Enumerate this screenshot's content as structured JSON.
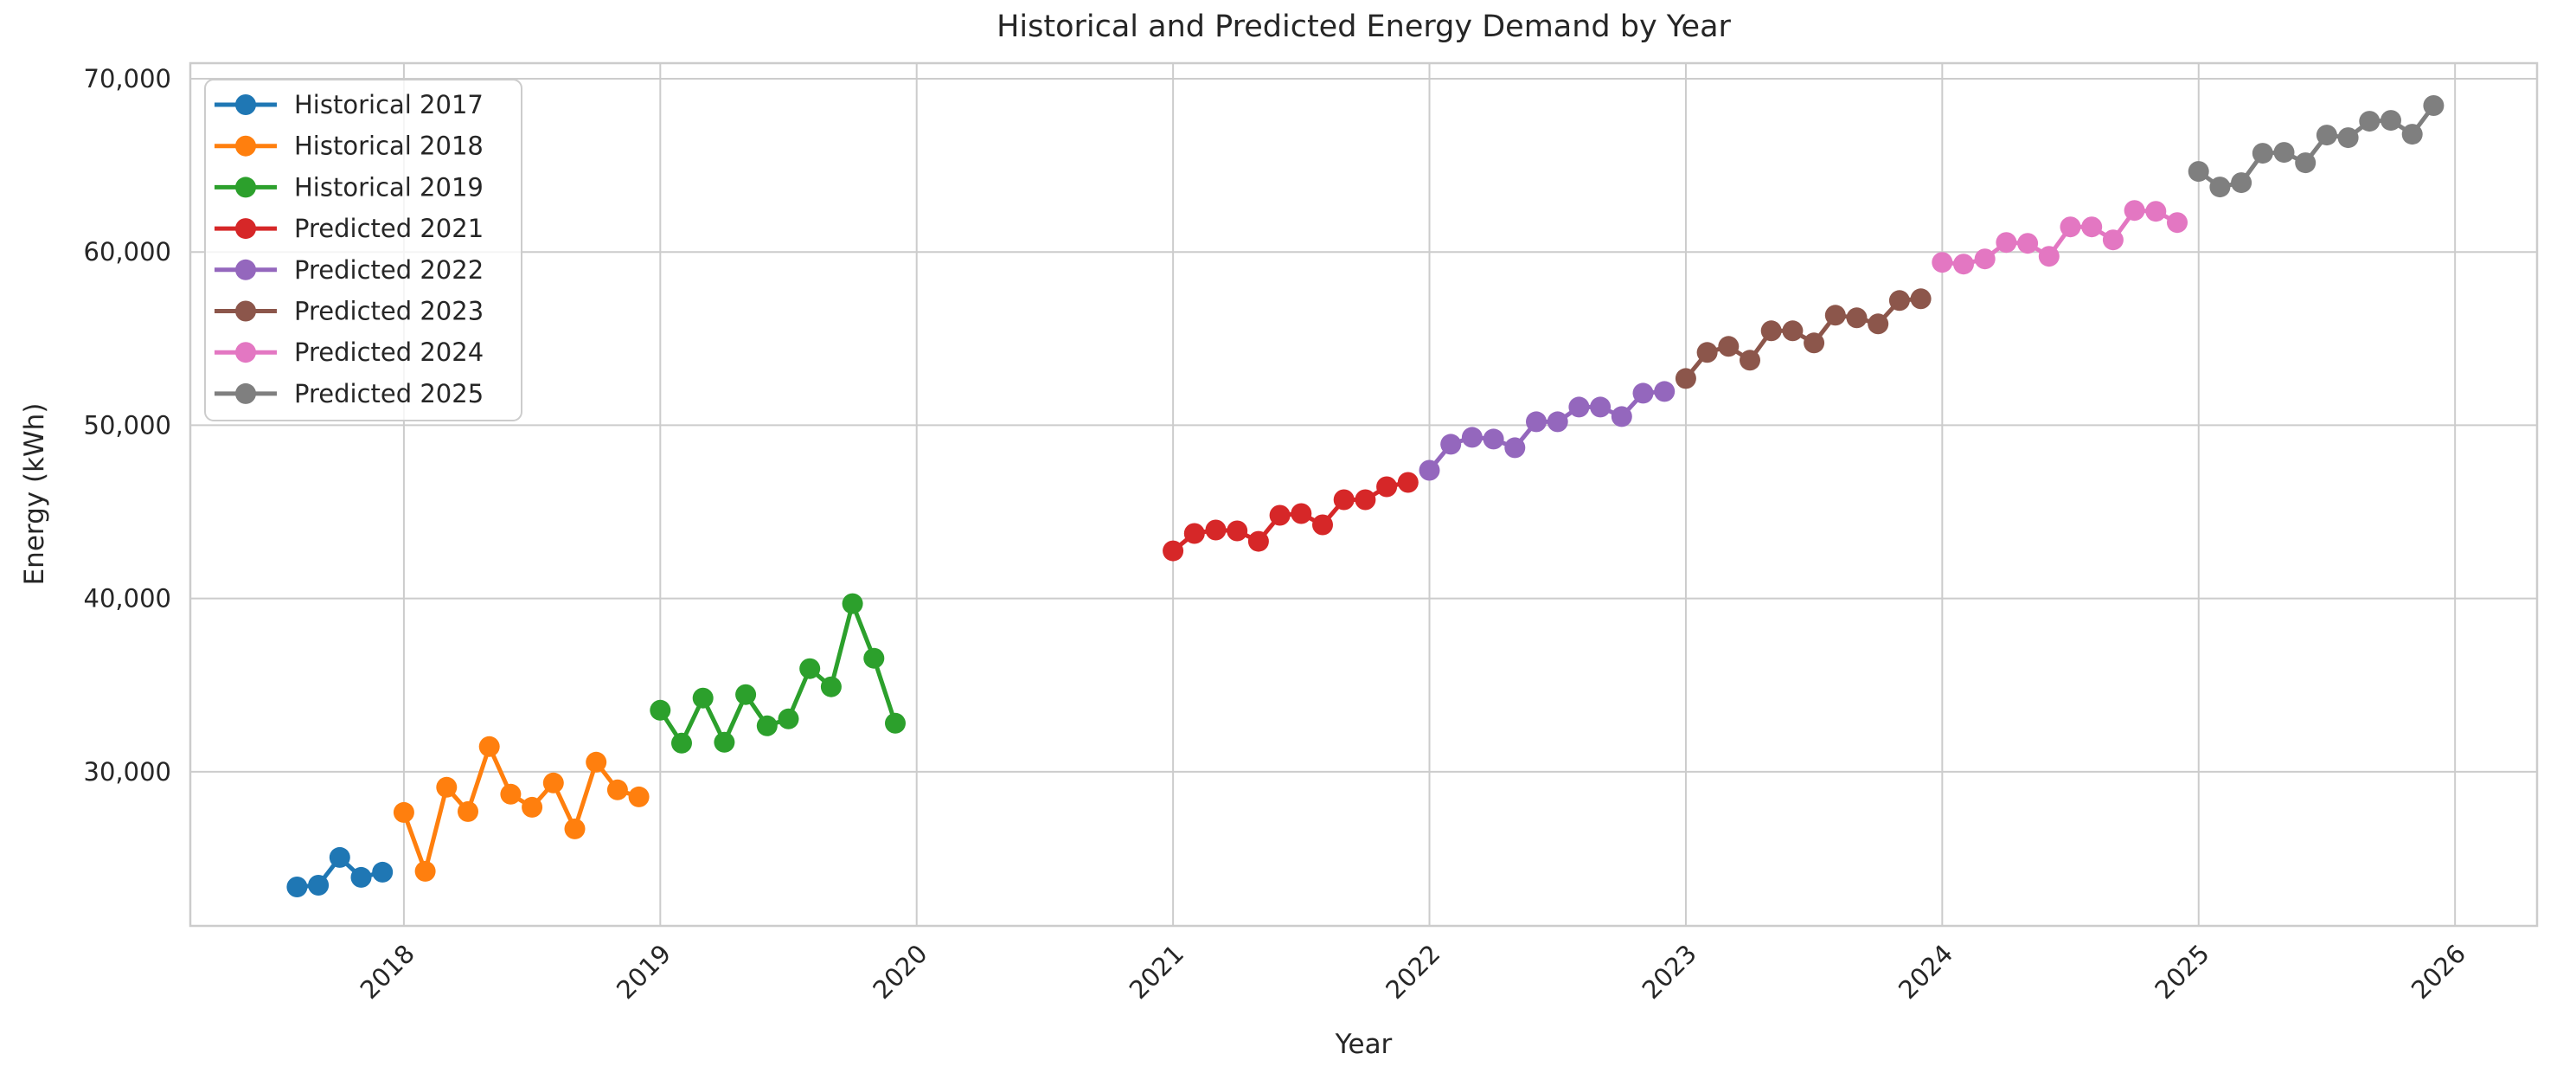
{
  "chart_data": {
    "type": "line",
    "title": "Historical and Predicted Energy Demand by Year",
    "xlabel": "Year",
    "ylabel": "Energy (kWh)",
    "grid": true,
    "legend_position": "upper-left",
    "xlim": [
      2017.167,
      2026.32
    ],
    "ylim": [
      21100,
      70900
    ],
    "x_ticks": [
      {
        "value": 2018,
        "label": "2018"
      },
      {
        "value": 2019,
        "label": "2019"
      },
      {
        "value": 2020,
        "label": "2020"
      },
      {
        "value": 2021,
        "label": "2021"
      },
      {
        "value": 2022,
        "label": "2022"
      },
      {
        "value": 2023,
        "label": "2023"
      },
      {
        "value": 2024,
        "label": "2024"
      },
      {
        "value": 2025,
        "label": "2025"
      },
      {
        "value": 2026,
        "label": "2026"
      }
    ],
    "y_ticks": [
      {
        "value": 30000,
        "label": "30,000"
      },
      {
        "value": 40000,
        "label": "40,000"
      },
      {
        "value": 50000,
        "label": "50,000"
      },
      {
        "value": 60000,
        "label": "60,000"
      },
      {
        "value": 70000,
        "label": "70,000"
      }
    ],
    "colors": {
      "grid": "#cccccc",
      "spine": "#cccccc",
      "text": "#262626",
      "legend_bg": "rgba(255,255,255,0.8)"
    },
    "series": [
      {
        "name": "Historical 2017",
        "color": "#1f77b4",
        "year": 2017,
        "start_month": 8,
        "values": [
          23350,
          23450,
          25050,
          23900,
          24200
        ]
      },
      {
        "name": "Historical 2018",
        "color": "#ff7f0e",
        "year": 2018,
        "start_month": 1,
        "values": [
          27650,
          24250,
          29100,
          27700,
          31450,
          28700,
          27950,
          29350,
          26700,
          30550,
          28950,
          28550
        ]
      },
      {
        "name": "Historical 2019",
        "color": "#2ca02c",
        "year": 2019,
        "start_month": 1,
        "values": [
          33550,
          31650,
          34250,
          31700,
          34450,
          32650,
          33050,
          35950,
          34900,
          39700,
          36550,
          32800
        ]
      },
      {
        "name": "Predicted 2021",
        "color": "#d62728",
        "year": 2021,
        "start_month": 1,
        "values": [
          42750,
          43750,
          43950,
          43900,
          43300,
          44800,
          44900,
          44250,
          45700,
          45700,
          46450,
          46700
        ]
      },
      {
        "name": "Predicted 2022",
        "color": "#9467bd",
        "year": 2022,
        "start_month": 1,
        "values": [
          47400,
          48900,
          49300,
          49200,
          48700,
          50200,
          50200,
          51050,
          51050,
          50500,
          51850,
          51950
        ]
      },
      {
        "name": "Predicted 2023",
        "color": "#8c564b",
        "year": 2023,
        "start_month": 1,
        "values": [
          52700,
          54200,
          54550,
          53750,
          55450,
          55450,
          54750,
          56350,
          56200,
          55850,
          57200,
          57300
        ]
      },
      {
        "name": "Predicted 2024",
        "color": "#e377c2",
        "year": 2024,
        "start_month": 1,
        "values": [
          59400,
          59300,
          59600,
          60550,
          60500,
          59750,
          61450,
          61450,
          60700,
          62400,
          62350,
          61700
        ]
      },
      {
        "name": "Predicted 2025",
        "color": "#7f7f7f",
        "year": 2025,
        "start_month": 1,
        "values": [
          64650,
          63750,
          64000,
          65700,
          65750,
          65150,
          66750,
          66600,
          67550,
          67600,
          66800,
          68450
        ]
      }
    ]
  }
}
